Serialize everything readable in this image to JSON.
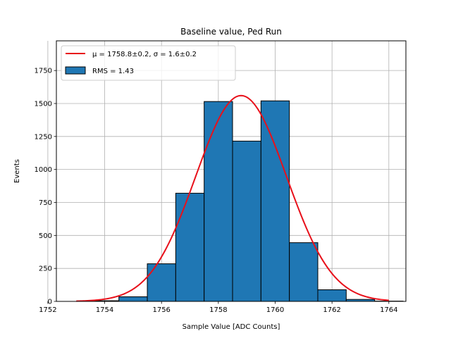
{
  "chart_data": {
    "type": "bar",
    "title": "Baseline value, Ped Run",
    "xlabel": "Sample Value [ADC Counts]",
    "ylabel": "Events",
    "xlim": [
      1752.3,
      1764.6
    ],
    "ylim": [
      0,
      1975
    ],
    "xticks": [
      1752,
      1754,
      1756,
      1758,
      1760,
      1762,
      1764
    ],
    "yticks": [
      0,
      250,
      500,
      750,
      1000,
      1250,
      1500,
      1750
    ],
    "grid": true,
    "legend_position": "top-left",
    "histogram": {
      "name": "RMS = 1.43",
      "color": "#1f77b4",
      "bins": [
        {
          "left": 1752.5,
          "right": 1753.5,
          "value": 0
        },
        {
          "left": 1753.5,
          "right": 1754.5,
          "value": 5
        },
        {
          "left": 1754.5,
          "right": 1755.5,
          "value": 35
        },
        {
          "left": 1755.5,
          "right": 1756.5,
          "value": 285
        },
        {
          "left": 1756.5,
          "right": 1757.5,
          "value": 820
        },
        {
          "left": 1757.5,
          "right": 1758.5,
          "value": 1515
        },
        {
          "left": 1758.5,
          "right": 1759.5,
          "value": 1215
        },
        {
          "left": 1759.5,
          "right": 1760.5,
          "value": 1520
        },
        {
          "left": 1760.5,
          "right": 1761.5,
          "value": 445
        },
        {
          "left": 1761.5,
          "right": 1762.5,
          "value": 88
        },
        {
          "left": 1762.5,
          "right": 1763.5,
          "value": 15
        },
        {
          "left": 1763.5,
          "right": 1764.5,
          "value": 2
        }
      ]
    },
    "fit": {
      "name": "μ = 1758.8±0.2, σ = 1.6±0.2",
      "color": "#e8101a",
      "mu": 1758.8,
      "sigma": 1.6,
      "amplitude": 1560,
      "x_range": [
        1753.0,
        1764.0
      ]
    }
  }
}
